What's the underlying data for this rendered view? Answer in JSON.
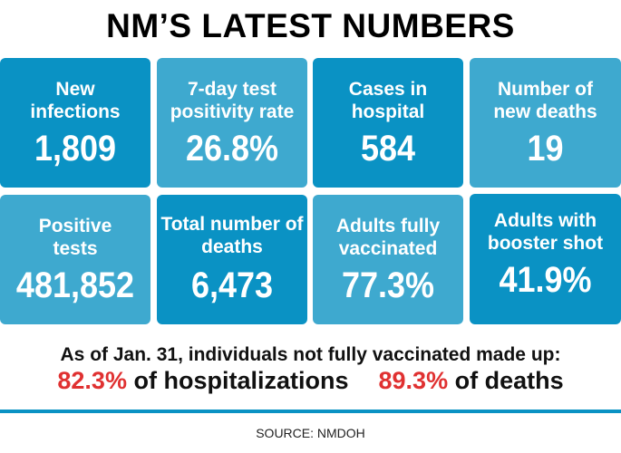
{
  "title": "NM’S LATEST NUMBERS",
  "colors": {
    "tile_dark": "#0a92c4",
    "tile_light": "#3ea9cf",
    "highlight": "#e03131"
  },
  "tiles": [
    {
      "label": "New infections",
      "value": "1,809"
    },
    {
      "label": "7-day test positivity rate",
      "value": "26.8%"
    },
    {
      "label": "Cases in hospital",
      "value": "584"
    },
    {
      "label": "Number of new deaths",
      "value": "19"
    },
    {
      "label": "Positive tests",
      "value": "481,852"
    },
    {
      "label": "Total number of deaths",
      "value": "6,473"
    },
    {
      "label": "Adults fully vaccinated",
      "value": "77.3%"
    },
    {
      "label": "Adults with booster shot",
      "value": "41.9%"
    }
  ],
  "note": {
    "intro": "As of Jan. 31, individuals not fully vaccinated made up:",
    "hosp_pct": "82.3%",
    "hosp_label": "of hospitalizations",
    "death_pct": "89.3%",
    "death_label": "of deaths"
  },
  "source": "SOURCE: NMDOH"
}
